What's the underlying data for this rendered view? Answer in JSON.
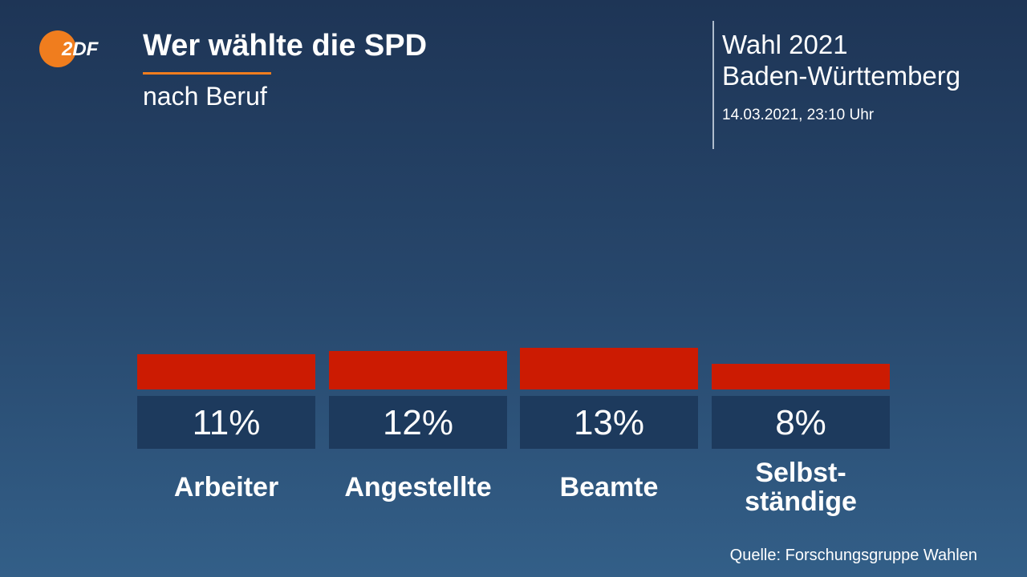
{
  "brand": {
    "logo_text": "2DF",
    "logo_color": "#f07d1e"
  },
  "header": {
    "title": "Wer wählte die SPD",
    "subtitle": "nach Beruf"
  },
  "info": {
    "election_line1": "Wahl 2021",
    "election_line2": "Baden-Württemberg",
    "timestamp": "14.03.2021, 23:10 Uhr"
  },
  "footer": {
    "source": "Quelle: Forschungsgruppe Wahlen"
  },
  "colors": {
    "bar": "#cc1b02",
    "value_box": "#1d3a5d",
    "accent": "#f07d1e"
  },
  "chart_data": {
    "type": "bar",
    "title": "Wer wählte die SPD",
    "subtitle": "nach Beruf",
    "categories": [
      "Arbeiter",
      "Angestellte",
      "Beamte",
      "Selbst-\nständige"
    ],
    "values": [
      11,
      12,
      13,
      8
    ],
    "value_labels": [
      "11%",
      "12%",
      "13%",
      "8%"
    ],
    "unit": "%",
    "xlabel": "",
    "ylabel": "",
    "ylim": [
      0,
      100
    ],
    "grid": false,
    "legend": "none"
  }
}
